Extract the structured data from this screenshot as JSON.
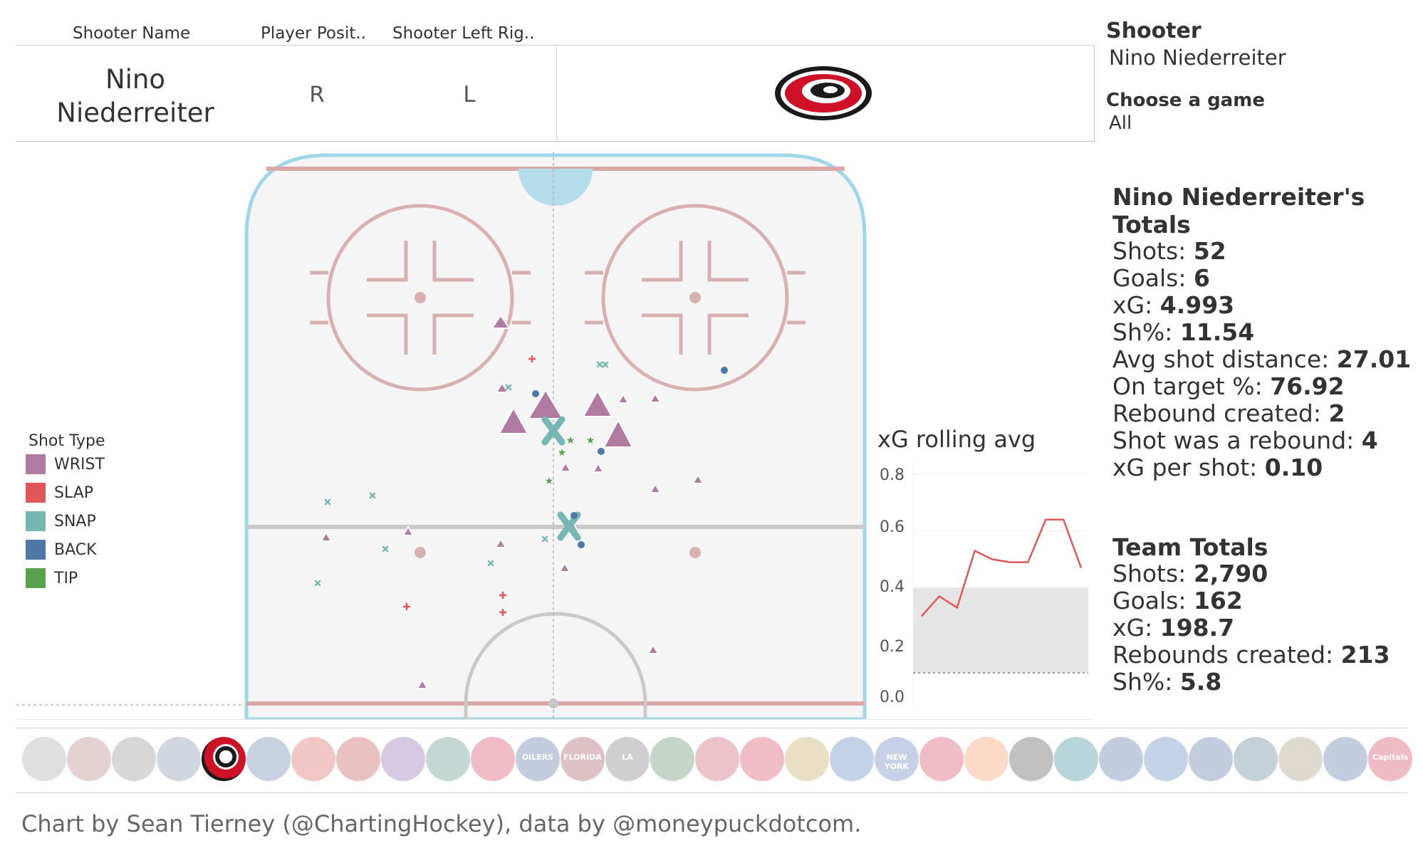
{
  "header": {
    "columns": [
      "Shooter Name",
      "Player Posit..",
      "Shooter Left Rig.."
    ],
    "name_line1": "Nino",
    "name_line2": "Niederreiter",
    "position": "R",
    "handedness": "L",
    "team_logo": "carolina-hurricanes-logo"
  },
  "filters": {
    "shooter_label": "Shooter",
    "shooter_value": "Nino Niederreiter",
    "game_label": "Choose a game",
    "game_value": "All"
  },
  "player_totals": {
    "title_line1": "Nino Niederreiter's",
    "title_line2": "Totals",
    "rows": [
      {
        "label": "Shots:",
        "value": "52"
      },
      {
        "label": "Goals:",
        "value": "6"
      },
      {
        "label": "xG:",
        "value": "4.993"
      },
      {
        "label": "Sh%:",
        "value": "11.54"
      },
      {
        "label": "Avg shot distance:",
        "value": "27.01"
      },
      {
        "label": "On target %:",
        "value": "76.92"
      },
      {
        "label": "Rebound created:",
        "value": "2"
      },
      {
        "label": "Shot was a rebound:",
        "value": "4"
      },
      {
        "label": "xG per shot:",
        "value": "0.10"
      }
    ]
  },
  "team_totals": {
    "title": "Team Totals",
    "rows": [
      {
        "label": "Shots:",
        "value": "2,790"
      },
      {
        "label": "Goals:",
        "value": "162"
      },
      {
        "label": "xG:",
        "value": "198.7"
      },
      {
        "label": "Rebounds created:",
        "value": "213"
      },
      {
        "label": "Sh%:",
        "value": "5.8"
      }
    ]
  },
  "legend": {
    "title": "Shot Type",
    "items": [
      {
        "label": "WRIST",
        "color": "#b07aa1"
      },
      {
        "label": "SLAP",
        "color": "#e15759"
      },
      {
        "label": "SNAP",
        "color": "#76b7b2"
      },
      {
        "label": "BACK",
        "color": "#4e79a7"
      },
      {
        "label": "TIP",
        "color": "#59a14f"
      }
    ]
  },
  "xg_chart": {
    "title": "xG rolling avg",
    "yticks": [
      "0.8",
      "0.6",
      "0.4",
      "0.2",
      "0.0"
    ]
  },
  "chart_data": {
    "type": "line",
    "title": "xG rolling avg",
    "ylim": [
      0,
      0.8
    ],
    "values": [
      0.3,
      0.37,
      0.33,
      0.53,
      0.5,
      0.49,
      0.49,
      0.64,
      0.64,
      0.47
    ],
    "band": [
      0.1,
      0.4
    ],
    "color": "#e15759"
  },
  "team_logos": [
    "anaheim",
    "arizona",
    "boston",
    "buffalo",
    "carolina",
    "columbus",
    "calgary",
    "chicago",
    "colorado",
    "dallas",
    "detroit",
    "edmonton",
    "florida",
    "los-angeles",
    "minnesota",
    "montreal",
    "new-jersey",
    "nashville",
    "ny-islanders",
    "ny-rangers",
    "ottawa",
    "philadelphia",
    "pittsburgh",
    "san-jose",
    "st-louis",
    "tampa-bay",
    "toronto",
    "vancouver",
    "vegas",
    "winnipeg",
    "washington"
  ],
  "team_logo_text": {
    "edmonton": "OILERS",
    "florida": "FLORIDA",
    "los-angeles": "LA",
    "ny-rangers": "NEW YORK",
    "washington": "Capitals"
  },
  "footer": "Chart by Sean Tierney (@ChartingHockey), data by @moneypuckdotcom."
}
